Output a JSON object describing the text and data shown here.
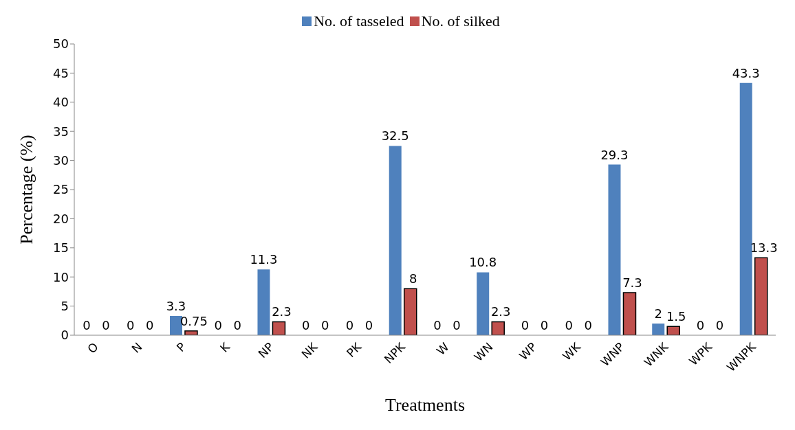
{
  "chart_data": {
    "type": "bar",
    "xlabel": "Treatments",
    "ylabel": "Percentage (%)",
    "categories": [
      "O",
      "N",
      "P",
      "K",
      "NP",
      "NK",
      "PK",
      "NPK",
      "W",
      "WN",
      "WP",
      "WK",
      "WNP",
      "WNK",
      "WPK",
      "WNPK"
    ],
    "series": [
      {
        "name": "No. of tasseled",
        "color": "#4f81bd",
        "values": [
          0,
          0,
          3.3,
          0,
          11.3,
          0,
          0,
          32.5,
          0,
          10.8,
          0,
          0,
          29.3,
          2,
          0,
          43.3
        ]
      },
      {
        "name": "No. of silked",
        "color": "#c0504d",
        "values": [
          0,
          0,
          0.75,
          0,
          2.3,
          0,
          0,
          8,
          0,
          2.3,
          0,
          0,
          7.3,
          1.5,
          0,
          13.3
        ]
      }
    ],
    "ylim": [
      0,
      50
    ],
    "yticks": [
      0,
      5,
      10,
      15,
      20,
      25,
      30,
      35,
      40,
      45,
      50
    ],
    "grid": false,
    "legend": "top",
    "data_labels": true
  }
}
